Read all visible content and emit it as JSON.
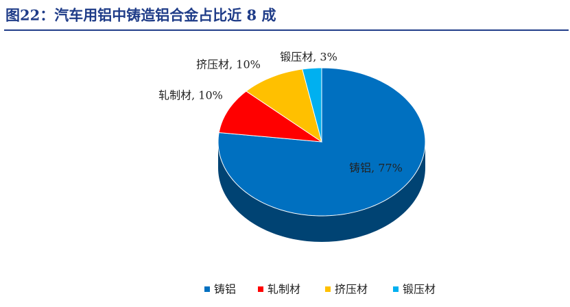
{
  "chart_data": {
    "type": "pie",
    "title": "图22：汽车用铝中铸造铝合金占比近 8 成",
    "categories": [
      "铸铝",
      "轧制材",
      "挤压材",
      "锻压材"
    ],
    "values": [
      77,
      10,
      10,
      3
    ],
    "value_labels": [
      "铸铝, 77%",
      "轧制材, 10%",
      "挤压材, 10%",
      "锻压材, 3%"
    ],
    "colors": [
      "#0070c0",
      "#ff0000",
      "#ffc000",
      "#00b0f0"
    ],
    "legend": "bottom"
  }
}
